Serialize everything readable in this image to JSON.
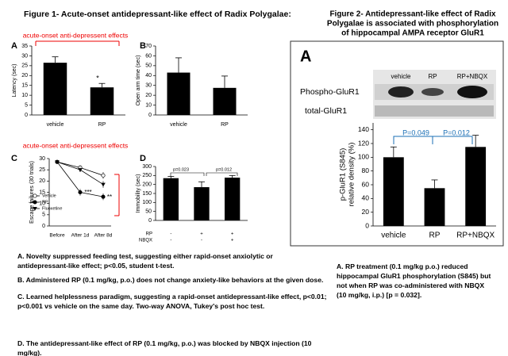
{
  "figure_1": {
    "title": "Figure 1- Acute-onset antidepressant-like effect of Radix Polygalae:",
    "captions": [
      "A. Novelty suppressed feeding test, suggesting either rapid-onset anxiolytic or antidepressant-like effect; p<0.05, student t-test.",
      "B. Administered RP (0.1 mg/kg, p.o.) does not change anxiety-like behaviors at the given dose.",
      "C. Learned helplessness paradigm, suggesting a rapid-onset antidepressant-like effect, p<0.01; p<0.001 vs vehicle on the same day. Two-way ANOVA, Tukey's post hoc test.",
      "D. The antidepressant-like effect of RP (0.1 mg/kg, p.o.) was blocked by NBQX injection (10 mg/kg)."
    ]
  },
  "figure_2": {
    "title_lines": [
      "Figure 2- Antidepressant-like effect of Radix",
      "Polygalae is associated with phosphorylation",
      "of hippocampal AMPA receptor GluR1"
    ],
    "captions": [
      "A. RP treatment (0.1 mg/kg p.o.) reduced hippocampal GluR1 phosphorylation (S845) but not when RP was co-administered with NBQX (10 mg/kg, i.p.) [p = 0.032]."
    ],
    "blot": {
      "letter": "A",
      "rows": [
        "Phospho-GluR1",
        "total-GluR1"
      ]
    }
  },
  "chart_data": [
    {
      "type": "bar",
      "label": "A",
      "y_label": "Latency (sec)",
      "categories": [
        "vehicle",
        "RP"
      ],
      "values": [
        26.5,
        14
      ],
      "errors": [
        3,
        2
      ],
      "color": "#000000",
      "ylim": [
        0,
        35
      ],
      "yticks": [
        0,
        5,
        10,
        15,
        20,
        25,
        30,
        35
      ],
      "annotations": [
        "acute-onset anti-depressent effects",
        "*"
      ]
    },
    {
      "type": "bar",
      "label": "B",
      "y_label": "Open arm time (sec)",
      "categories": [
        "vehicle",
        "RP"
      ],
      "values": [
        43,
        27.5
      ],
      "errors": [
        15,
        12
      ],
      "color": "#000000",
      "ylim": [
        0,
        70
      ],
      "yticks": [
        0,
        10,
        20,
        30,
        40,
        50,
        60,
        70
      ]
    },
    {
      "type": "line",
      "label": "C",
      "y_label": "Escape failures (30 trials)",
      "categories": [
        "Before",
        "After 1d",
        "After 8d"
      ],
      "series": [
        {
          "name": "Vehicle",
          "color": "#000000",
          "marker": "open-circle",
          "values": [
            28.5,
            26,
            22.5
          ],
          "errors": [
            0.7,
            1,
            1.5
          ]
        },
        {
          "name": "RP",
          "color": "#000000",
          "marker": "filled-circle",
          "values": [
            28.5,
            15,
            13
          ],
          "errors": [
            0.7,
            1.5,
            1.5
          ]
        },
        {
          "name": "Fluoxetine",
          "color": "#000000",
          "marker": "triangle",
          "values": [
            28.5,
            25,
            18.5
          ],
          "errors": [
            0.7,
            1,
            1.5
          ]
        }
      ],
      "ylim": [
        0,
        30
      ],
      "yticks": [
        0,
        5,
        10,
        15,
        20,
        25,
        30
      ],
      "annotations": [
        "acute-onset anti-depressent effects",
        "***",
        "**"
      ]
    },
    {
      "type": "bar",
      "label": "D",
      "y_label": "Immobility (sec)",
      "categories": [
        null,
        null,
        null
      ],
      "values": [
        235,
        185,
        238
      ],
      "errors": [
        10,
        30,
        12
      ],
      "color": "#000000",
      "ylim": [
        0,
        300
      ],
      "yticks": [
        0,
        50,
        100,
        150,
        200,
        250,
        300
      ],
      "annotations": [
        "p=0.023",
        "p=0.012"
      ],
      "rows": [
        {
          "name": "RP",
          "values": [
            "-",
            "+",
            "+"
          ]
        },
        {
          "name": "NBQX",
          "values": [
            "-",
            "-",
            "+"
          ]
        }
      ]
    },
    {
      "type": "bar",
      "y_label": [
        "p-GluR1 (S845)",
        "relative density (%)"
      ],
      "categories": [
        "vehicle",
        "RP",
        "RP+NBQX"
      ],
      "values": [
        100,
        55,
        115
      ],
      "errors": [
        15,
        12,
        17
      ],
      "color": "#000000",
      "ylim": [
        0,
        150
      ],
      "yticks": [
        0,
        20,
        40,
        60,
        80,
        100,
        120,
        140
      ],
      "annotations": [
        "P=0.049",
        "P=0.012"
      ]
    }
  ]
}
